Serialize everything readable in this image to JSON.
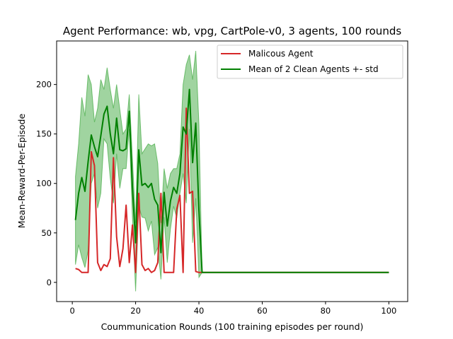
{
  "chart_data": {
    "type": "line",
    "title": "Agent Performance: wb, vpg, CartPole-v0, 3 agents, 100 rounds",
    "xlabel": "Coummunication Rounds (100 training episodes per round)",
    "ylabel": "Mean-Reward-Per-Episode",
    "xlim": [
      -4.95,
      105.95
    ],
    "ylim": [
      -19.4,
      244
    ],
    "xticks": [
      0,
      20,
      40,
      60,
      80,
      100
    ],
    "yticks": [
      0,
      50,
      100,
      150,
      200
    ],
    "legend_position": "top-right",
    "grid": false,
    "x": [
      1,
      2,
      3,
      4,
      5,
      6,
      7,
      8,
      9,
      10,
      11,
      12,
      13,
      14,
      15,
      16,
      17,
      18,
      19,
      20,
      21,
      22,
      23,
      24,
      25,
      26,
      27,
      28,
      29,
      30,
      31,
      32,
      33,
      34,
      35,
      36,
      37,
      38,
      39,
      40,
      41,
      42,
      43,
      44,
      45,
      46,
      47,
      48,
      49,
      50,
      51,
      52,
      53,
      54,
      55,
      56,
      57,
      58,
      59,
      60,
      61,
      62,
      63,
      64,
      65,
      66,
      67,
      68,
      69,
      70,
      71,
      72,
      73,
      74,
      75,
      76,
      77,
      78,
      79,
      80,
      81,
      82,
      83,
      84,
      85,
      86,
      87,
      88,
      89,
      90,
      91,
      92,
      93,
      94,
      95,
      96,
      97,
      98,
      99,
      100
    ],
    "series": [
      {
        "name": "Malicous Agent",
        "color": "#d62728",
        "values": [
          14,
          13,
          10,
          10,
          10,
          132,
          118,
          20,
          12,
          18,
          16,
          24,
          126,
          46,
          16,
          34,
          78,
          20,
          58,
          10,
          90,
          18,
          12,
          14,
          10,
          12,
          20,
          90,
          10,
          10,
          10,
          10,
          74,
          88,
          10,
          176,
          90,
          92,
          11,
          10,
          10,
          10,
          10,
          10,
          10,
          10,
          10,
          10,
          10,
          10,
          10,
          10,
          10,
          10,
          10,
          10,
          10,
          10,
          10,
          10,
          10,
          10,
          10,
          10,
          10,
          10,
          10,
          10,
          10,
          10,
          10,
          10,
          10,
          10,
          10,
          10,
          10,
          10,
          10,
          10,
          10,
          10,
          10,
          10,
          10,
          10,
          10,
          10,
          10,
          10,
          10,
          10,
          10,
          10,
          10,
          10,
          10,
          10,
          10,
          10
        ]
      },
      {
        "name": "Mean of 2 Clean Agents +- std",
        "color": "#008000",
        "values": [
          63,
          90,
          106,
          92,
          122,
          149,
          137,
          127,
          148,
          170,
          178,
          150,
          130,
          166,
          134,
          133,
          135,
          173,
          96,
          40,
          134,
          98,
          100,
          96,
          100,
          84,
          78,
          30,
          91,
          57,
          82,
          96,
          90,
          110,
          157,
          150,
          195,
          121,
          161,
          73,
          10,
          10,
          10,
          10,
          10,
          10,
          10,
          10,
          10,
          10,
          10,
          10,
          10,
          10,
          10,
          10,
          10,
          10,
          10,
          10,
          10,
          10,
          10,
          10,
          10,
          10,
          10,
          10,
          10,
          10,
          10,
          10,
          10,
          10,
          10,
          10,
          10,
          10,
          10,
          10,
          10,
          10,
          10,
          10,
          10,
          10,
          10,
          10,
          10,
          10,
          10,
          10,
          10,
          10,
          10,
          10,
          10,
          10,
          10,
          10
        ],
        "band_color": "#2ca02c",
        "upper": [
          107,
          140,
          187,
          168,
          210,
          200,
          162,
          176,
          205,
          195,
          217,
          195,
          176,
          200,
          175,
          150,
          155,
          190,
          125,
          60,
          190,
          130,
          135,
          140,
          138,
          140,
          120,
          60,
          115,
          95,
          110,
          115,
          115,
          130,
          200,
          220,
          230,
          205,
          234,
          160,
          10,
          10,
          10,
          10,
          10,
          10,
          10,
          10,
          10,
          10,
          10,
          10,
          10,
          10,
          10,
          10,
          10,
          10,
          10,
          10,
          10,
          10,
          10,
          10,
          10,
          10,
          10,
          10,
          10,
          10,
          10,
          10,
          10,
          10,
          10,
          10,
          10,
          10,
          10,
          10,
          10,
          10,
          10,
          10,
          10,
          10,
          10,
          10,
          10,
          10,
          10,
          10,
          10,
          10,
          10,
          10,
          10,
          10,
          10,
          10
        ],
        "lower": [
          18,
          38,
          25,
          15,
          32,
          100,
          110,
          75,
          90,
          145,
          140,
          105,
          80,
          130,
          95,
          115,
          115,
          155,
          65,
          -9,
          77,
          66,
          65,
          52,
          62,
          28,
          35,
          3,
          66,
          20,
          54,
          77,
          65,
          90,
          110,
          80,
          155,
          40,
          85,
          5,
          10,
          10,
          10,
          10,
          10,
          10,
          10,
          10,
          10,
          10,
          10,
          10,
          10,
          10,
          10,
          10,
          10,
          10,
          10,
          10,
          10,
          10,
          10,
          10,
          10,
          10,
          10,
          10,
          10,
          10,
          10,
          10,
          10,
          10,
          10,
          10,
          10,
          10,
          10,
          10,
          10,
          10,
          10,
          10,
          10,
          10,
          10,
          10,
          10,
          10,
          10,
          10,
          10,
          10,
          10,
          10,
          10,
          10,
          10,
          10
        ]
      }
    ]
  }
}
